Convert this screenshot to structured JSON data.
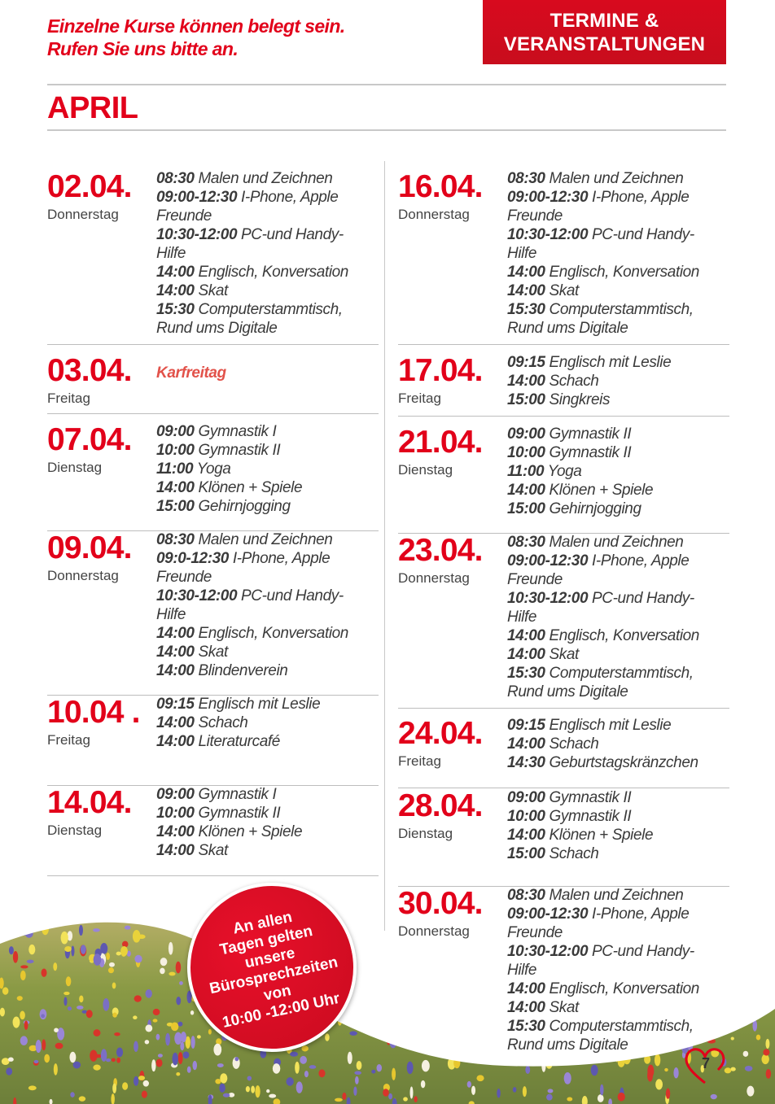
{
  "header": {
    "notice_line1": "Einzelne Kurse können belegt sein.",
    "notice_line2": "Rufen Sie uns bitte an.",
    "section_tag_line1": "TERMINE &",
    "section_tag_line2": "VERANSTALTUNGEN",
    "month": "APRIL"
  },
  "colors": {
    "brand_red": "#e2001a",
    "text": "#3a3a3a",
    "holiday": "#e2524a"
  },
  "left_column": [
    {
      "date": "02.04.",
      "day": "Donnerstag",
      "items": [
        {
          "time": "08:30",
          "text": "Malen und Zeichnen"
        },
        {
          "time": "09:00-12:30",
          "text": "I-Phone, Apple Freunde"
        },
        {
          "time": "10:30-12:00",
          "text": "PC-und Handy-Hilfe"
        },
        {
          "time": "14:00",
          "text": "Englisch, Konversation"
        },
        {
          "time": "14:00",
          "text": "Skat"
        },
        {
          "time": "15:30",
          "text": "Computerstammtisch, Rund ums Digitale"
        }
      ]
    },
    {
      "date": "03.04.",
      "day": "Freitag",
      "holiday": "Karfreitag",
      "items": []
    },
    {
      "date": "07.04.",
      "day": "Dienstag",
      "items": [
        {
          "time": "09:00",
          "text": "Gymnastik I"
        },
        {
          "time": "10:00",
          "text": "Gymnastik II"
        },
        {
          "time": "11:00",
          "text": "Yoga"
        },
        {
          "time": "14:00",
          "text": "Klönen + Spiele"
        },
        {
          "time": "15:00",
          "text": "Gehirnjogging"
        }
      ]
    },
    {
      "date": "09.04.",
      "day": "Donnerstag",
      "items": [
        {
          "time": "08:30",
          "text": "Malen und Zeichnen"
        },
        {
          "time": "09:0-12:30",
          "text": "I-Phone, Apple Freunde"
        },
        {
          "time": "10:30-12:00",
          "text": "PC-und Handy-Hilfe"
        },
        {
          "time": "14:00",
          "text": "Englisch, Konversation"
        },
        {
          "time": "14:00",
          "text": "Skat"
        },
        {
          "time": "14:00",
          "text": "Blindenverein"
        }
      ]
    },
    {
      "date": "10.04 .",
      "day": "Freitag",
      "items": [
        {
          "time": "09:15",
          "text": "Englisch mit Leslie"
        },
        {
          "time": "14:00",
          "text": "Schach"
        },
        {
          "time": "14:00",
          "text": "Literaturcafé"
        }
      ]
    },
    {
      "date": "14.04.",
      "day": "Dienstag",
      "items": [
        {
          "time": "09:00",
          "text": "Gymnastik I"
        },
        {
          "time": "10:00",
          "text": "Gymnastik II"
        },
        {
          "time": "14:00",
          "text": "Klönen + Spiele"
        },
        {
          "time": "14:00",
          "text": "Skat"
        }
      ]
    }
  ],
  "right_column": [
    {
      "date": "16.04.",
      "day": "Donnerstag",
      "items": [
        {
          "time": "08:30",
          "text": "Malen und Zeichnen"
        },
        {
          "time": "09:00-12:30",
          "text": "I-Phone, Apple Freunde"
        },
        {
          "time": "10:30-12:00",
          "text": "PC-und Handy-Hilfe"
        },
        {
          "time": "14:00",
          "text": "Englisch, Konversation"
        },
        {
          "time": "14:00",
          "text": "Skat"
        },
        {
          "time": "15:30",
          "text": "Computerstammtisch, Rund ums Digitale"
        }
      ]
    },
    {
      "date": "17.04.",
      "day": "Freitag",
      "items": [
        {
          "time": "09:15",
          "text": "Englisch mit Leslie"
        },
        {
          "time": "14:00",
          "text": "Schach"
        },
        {
          "time": "15:00",
          "text": "Singkreis"
        }
      ]
    },
    {
      "date": "21.04.",
      "day": "Dienstag",
      "items": [
        {
          "time": "09:00",
          "text": "Gymnastik II"
        },
        {
          "time": "10:00",
          "text": "Gymnastik II"
        },
        {
          "time": "11:00",
          "text": "Yoga"
        },
        {
          "time": "14:00",
          "text": "Klönen + Spiele"
        },
        {
          "time": "15:00",
          "text": "Gehirnjogging"
        }
      ]
    },
    {
      "date": "23.04.",
      "day": "Donnerstag",
      "items": [
        {
          "time": "08:30",
          "text": "Malen und Zeichnen"
        },
        {
          "time": "09:00-12:30",
          "text": "I-Phone, Apple Freunde"
        },
        {
          "time": "10:30-12:00",
          "text": "PC-und Handy-Hilfe"
        },
        {
          "time": "14:00",
          "text": "Englisch, Konversation"
        },
        {
          "time": "14:00",
          "text": "Skat"
        },
        {
          "time": "15:30",
          "text": "Computerstammtisch, Rund ums Digitale"
        }
      ]
    },
    {
      "date": "24.04.",
      "day": "Freitag",
      "items": [
        {
          "time": "09:15",
          "text": "Englisch mit Leslie"
        },
        {
          "time": "14:00",
          "text": "Schach"
        },
        {
          "time": "14:30",
          "text": "Geburtstagskränzchen"
        }
      ]
    },
    {
      "date": "28.04.",
      "day": "Dienstag",
      "items": [
        {
          "time": "09:00",
          "text": "Gymnastik II"
        },
        {
          "time": "10:00",
          "text": "Gymnastik II"
        },
        {
          "time": "14:00",
          "text": "Klönen + Spiele"
        },
        {
          "time": "15:00",
          "text": "Schach"
        }
      ]
    },
    {
      "date": "30.04.",
      "day": "Donnerstag",
      "items": [
        {
          "time": "08:30",
          "text": "Malen und Zeichnen"
        },
        {
          "time": "09:00-12:30",
          "text": "I-Phone, Apple Freunde"
        },
        {
          "time": "10:30-12:00",
          "text": "PC-und Handy-Hilfe"
        },
        {
          "time": "14:00",
          "text": "Englisch, Konversation"
        },
        {
          "time": "14:00",
          "text": "Skat"
        },
        {
          "time": "15:30",
          "text": "Computerstammtisch, Rund ums Digitale"
        }
      ]
    }
  ],
  "badge": {
    "lines": [
      "An allen",
      "Tagen gelten",
      "unsere",
      "Bürosprechzeiten",
      "von",
      "10:00 -12:00 Uhr"
    ]
  },
  "page_number": "7"
}
